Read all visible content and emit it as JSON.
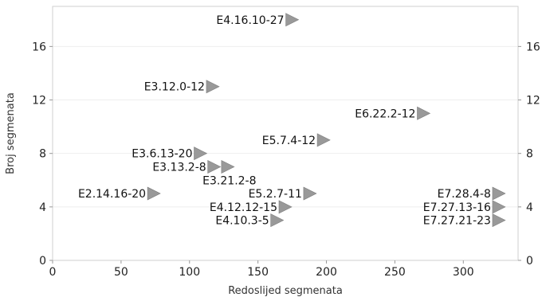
{
  "chart_data": {
    "type": "scatter",
    "xlabel": "Redoslijed segmenata",
    "ylabel": "Broj segmenata",
    "xlim": [
      0,
      340
    ],
    "ylim": [
      0,
      19
    ],
    "x_ticks": [
      0,
      50,
      100,
      150,
      200,
      250,
      300
    ],
    "y_ticks": [
      0,
      4,
      8,
      12,
      16
    ],
    "grid": true,
    "marker": "triangle-right",
    "marker_color": "#999999",
    "points": [
      {
        "label": "E4.16.10-27",
        "x": 175,
        "y": 18
      },
      {
        "label": "E3.12.0-12",
        "x": 117,
        "y": 13
      },
      {
        "label": "E6.22.2-12",
        "x": 271,
        "y": 11
      },
      {
        "label": "E5.7.4-12",
        "x": 198,
        "y": 9
      },
      {
        "label": "E3.6.13-20",
        "x": 108,
        "y": 8
      },
      {
        "label": "E3.13.2-8",
        "x": 118,
        "y": 7
      },
      {
        "label": "E3.21.2-8",
        "x": 128,
        "y": 7
      },
      {
        "label": "E2.14.16-20",
        "x": 74,
        "y": 5
      },
      {
        "label": "E5.2.7-11",
        "x": 188,
        "y": 5
      },
      {
        "label": "E4.12.12-15",
        "x": 170,
        "y": 4
      },
      {
        "label": "E4.10.3-5",
        "x": 164,
        "y": 3
      },
      {
        "label": "E7.28.4-8",
        "x": 326,
        "y": 5
      },
      {
        "label": "E7.27.13-16",
        "x": 326,
        "y": 4
      },
      {
        "label": "E7.27.21-23",
        "x": 326,
        "y": 3
      }
    ]
  }
}
